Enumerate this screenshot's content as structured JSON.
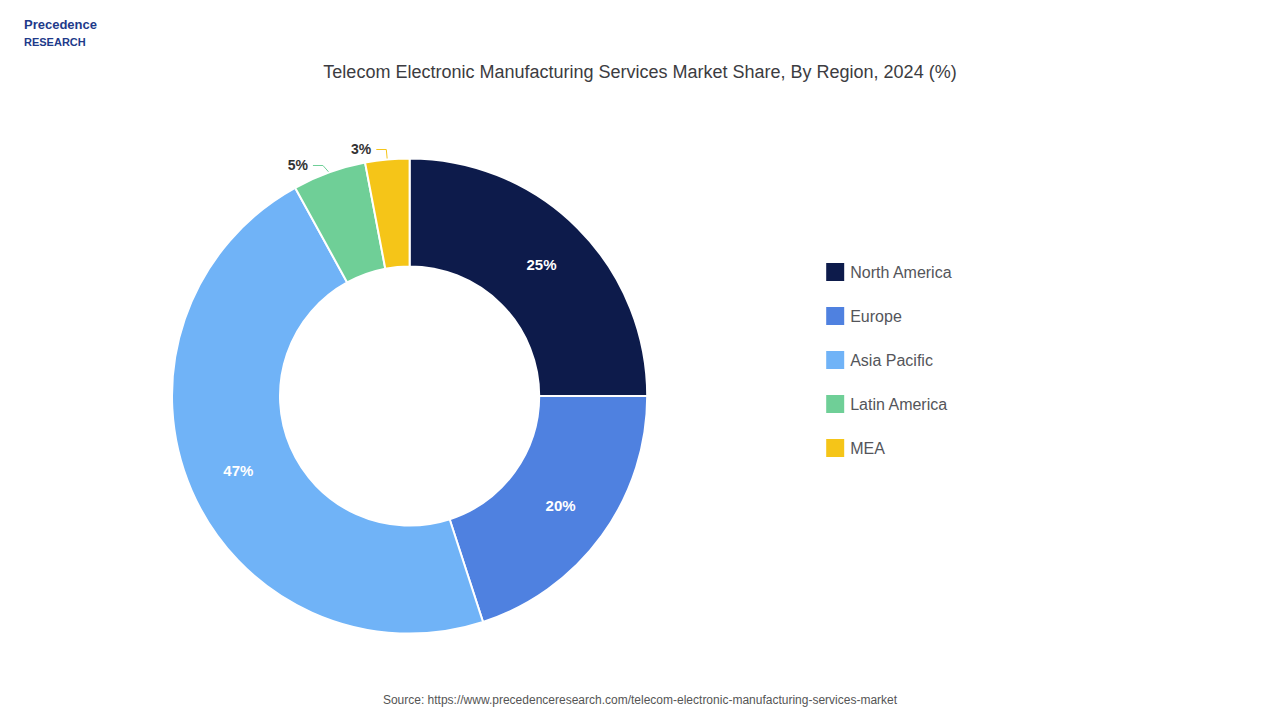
{
  "chart_data": {
    "type": "pie",
    "title": "Telecom Electronic Manufacturing Services Market Share, By Region, 2024 (%)",
    "categories": [
      "North America",
      "Europe",
      "Asia Pacific",
      "Latin America",
      "MEA"
    ],
    "values": [
      25,
      20,
      47,
      5,
      3
    ],
    "value_labels": [
      "25%",
      "20%",
      "47%",
      "5%",
      "3%"
    ],
    "colors": [
      "#0d1b4b",
      "#4f81e0",
      "#70b3f7",
      "#6fcf97",
      "#f5c518"
    ],
    "data_labels": true,
    "legend": "right",
    "annotations": [
      "Precedence",
      "RESEARCH",
      "Source: https://www.precedenceresearch.com/telecom-electronic-manufacturing-services-market"
    ]
  }
}
